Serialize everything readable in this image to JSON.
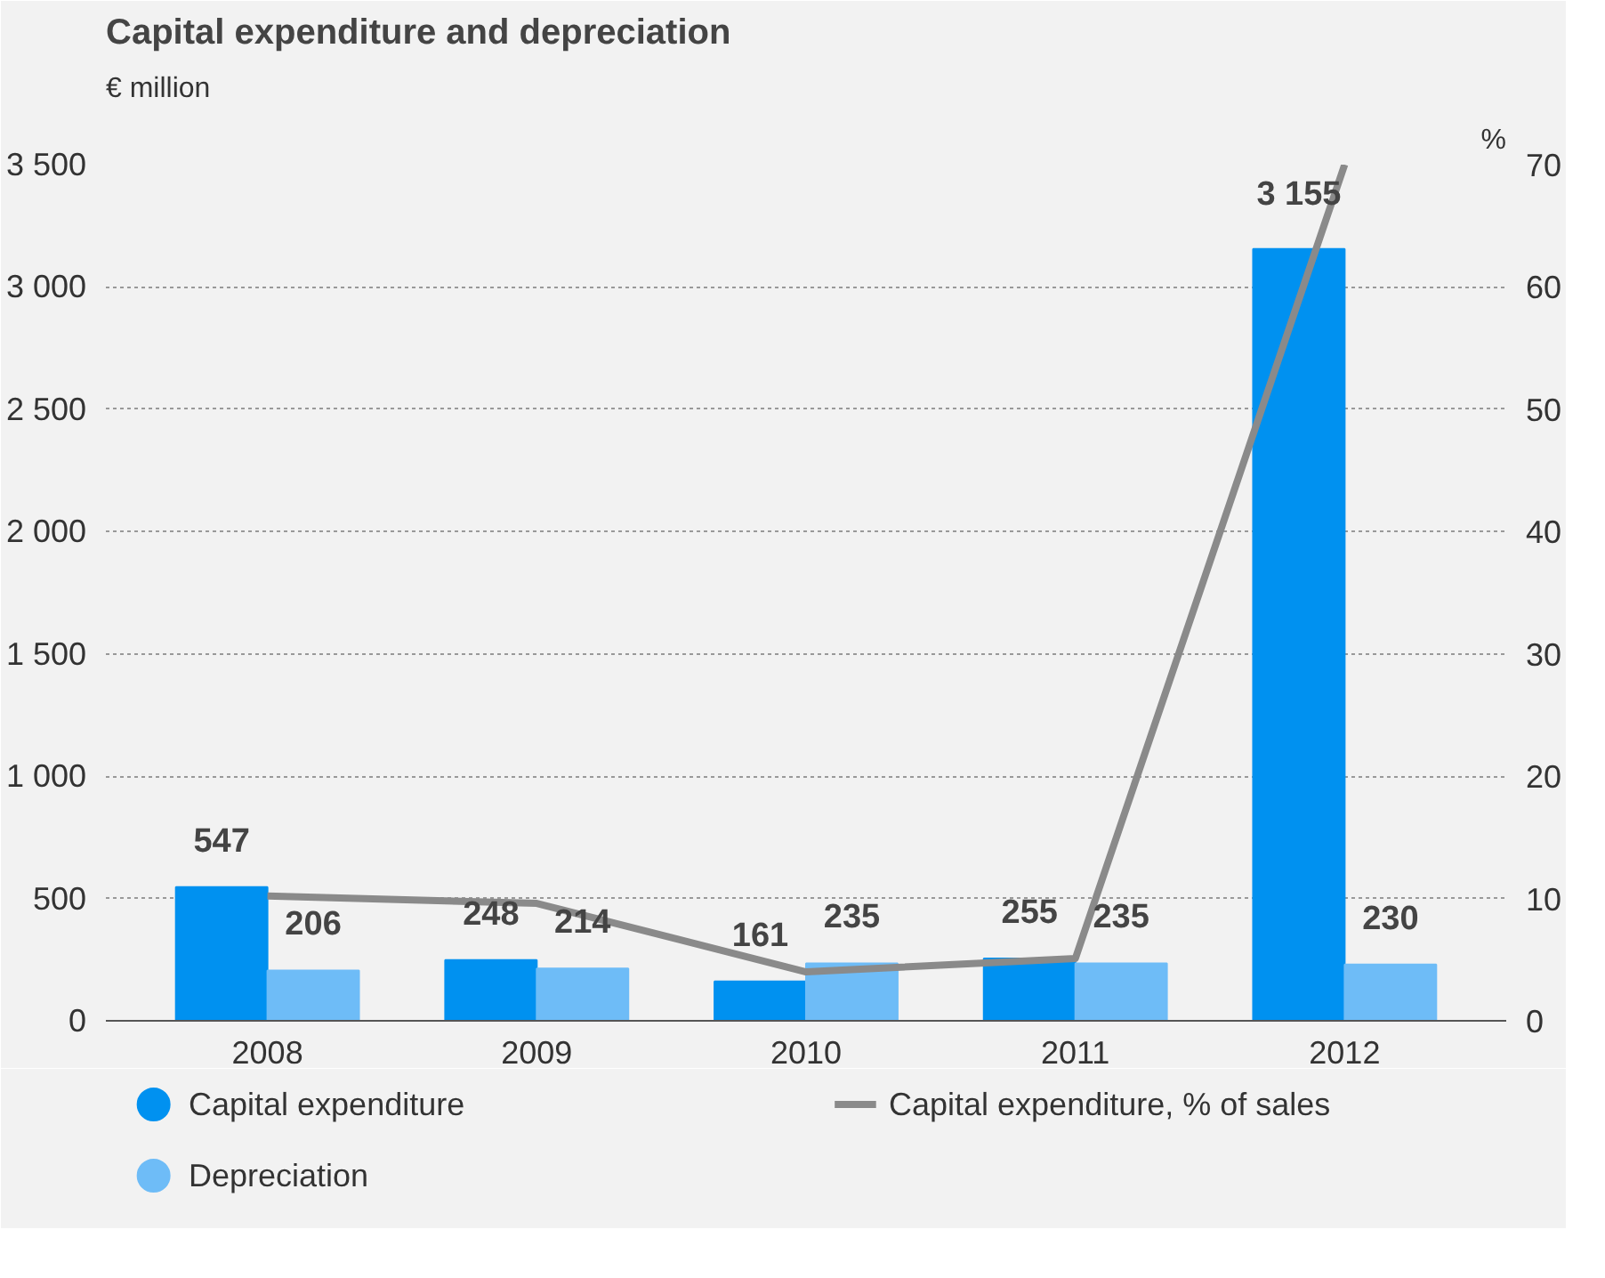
{
  "chart_data": {
    "type": "bar",
    "title": "Capital expenditure and depreciation",
    "ylabel": "€ million",
    "y2label": "%",
    "categories": [
      "2008",
      "2009",
      "2010",
      "2011",
      "2012"
    ],
    "series": [
      {
        "name": "Capital expenditure",
        "color": "#0091f0",
        "values": [
          547,
          248,
          161,
          255,
          3155
        ],
        "value_labels": [
          "547",
          "248",
          "161",
          "255",
          "3 155"
        ]
      },
      {
        "name": "Depreciation",
        "color": "#6ebcf7",
        "values": [
          206,
          214,
          235,
          235,
          230
        ],
        "value_labels": [
          "206",
          "214",
          "235",
          "235",
          "230"
        ]
      },
      {
        "name": "Capital expenditure, % of sales",
        "type": "line",
        "axis": "y2",
        "color": "#8a8a8a",
        "values": [
          10.2,
          9.6,
          4.0,
          5.1,
          70
        ]
      }
    ],
    "ylim": [
      0,
      3500
    ],
    "yticks": [
      0,
      {
        "value": 500,
        "label": "500"
      },
      {
        "value": 1000,
        "label": "1 000"
      },
      {
        "value": 1500,
        "label": "1 500"
      },
      {
        "value": 2000,
        "label": "2 000"
      },
      {
        "value": 2500,
        "label": "2 500"
      },
      {
        "value": 3000,
        "label": "3 000"
      },
      {
        "value": 3500,
        "label": "3 500"
      }
    ],
    "y2lim": [
      0,
      70
    ],
    "y2ticks": [
      0,
      10,
      20,
      30,
      40,
      50,
      60,
      70
    ],
    "grid": "y",
    "legend": "bottom"
  }
}
